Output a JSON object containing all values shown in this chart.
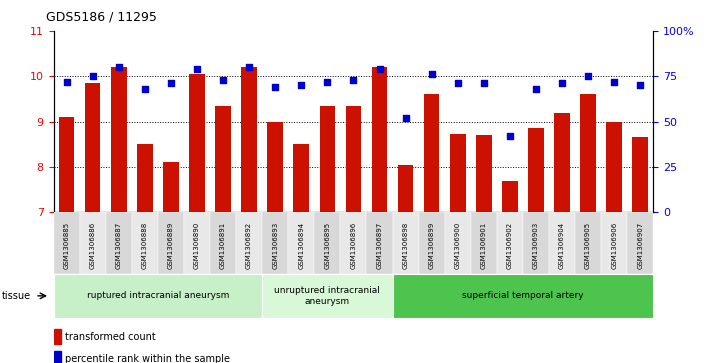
{
  "title": "GDS5186 / 11295",
  "samples": [
    "GSM1306885",
    "GSM1306886",
    "GSM1306887",
    "GSM1306888",
    "GSM1306889",
    "GSM1306890",
    "GSM1306891",
    "GSM1306892",
    "GSM1306893",
    "GSM1306894",
    "GSM1306895",
    "GSM1306896",
    "GSM1306897",
    "GSM1306898",
    "GSM1306899",
    "GSM1306900",
    "GSM1306901",
    "GSM1306902",
    "GSM1306903",
    "GSM1306904",
    "GSM1306905",
    "GSM1306906",
    "GSM1306907"
  ],
  "transformed_count": [
    9.1,
    9.85,
    10.2,
    8.5,
    8.1,
    10.05,
    9.35,
    10.2,
    9.0,
    8.5,
    9.35,
    9.35,
    10.2,
    8.05,
    9.6,
    8.72,
    8.7,
    7.7,
    8.85,
    9.2,
    9.6,
    9.0,
    8.67
  ],
  "percentile_rank": [
    72,
    75,
    80,
    68,
    71,
    79,
    73,
    80,
    69,
    70,
    72,
    73,
    79,
    52,
    76,
    71,
    71,
    42,
    68,
    71,
    75,
    72,
    70
  ],
  "group_labels": [
    "ruptured intracranial aneurysm",
    "unruptured intracranial\naneurysm",
    "superficial temporal artery"
  ],
  "group_starts": [
    0,
    8,
    13
  ],
  "group_ends": [
    8,
    13,
    23
  ],
  "group_colors": [
    "#c8f0c8",
    "#d8f8d8",
    "#4dc44d"
  ],
  "bar_color": "#cc1100",
  "dot_color": "#0000cc",
  "ylim_left": [
    7,
    11
  ],
  "ylim_right": [
    0,
    100
  ],
  "yticks_left": [
    7,
    8,
    9,
    10,
    11
  ],
  "yticks_right": [
    0,
    25,
    50,
    75,
    100
  ],
  "ytick_labels_right": [
    "0",
    "25",
    "50",
    "75",
    "100%"
  ],
  "bar_width": 0.6,
  "cell_color_even": "#d8d8d8",
  "cell_color_odd": "#e8e8e8",
  "tissue_label": "tissue",
  "legend_bar_label": "transformed count",
  "legend_dot_label": "percentile rank within the sample"
}
